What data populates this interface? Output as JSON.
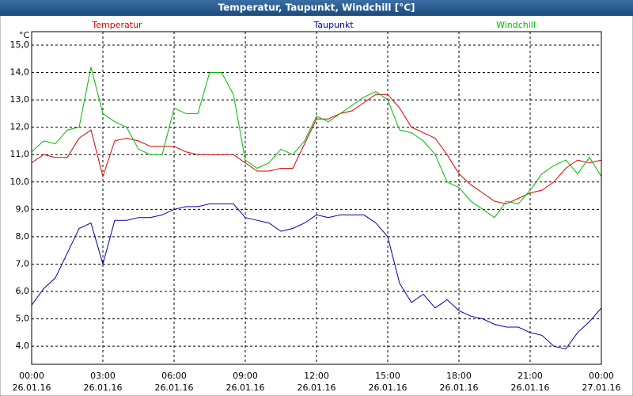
{
  "chart_data": {
    "type": "line",
    "title": "Temperatur, Taupunkt, Windchill [°C]",
    "y_unit": "°C",
    "x": [
      "2016-01-26T00:00",
      "2016-01-26T00:30",
      "2016-01-26T01:00",
      "2016-01-26T01:30",
      "2016-01-26T02:00",
      "2016-01-26T02:30",
      "2016-01-26T03:00",
      "2016-01-26T03:30",
      "2016-01-26T04:00",
      "2016-01-26T04:30",
      "2016-01-26T05:00",
      "2016-01-26T05:30",
      "2016-01-26T06:00",
      "2016-01-26T06:30",
      "2016-01-26T07:00",
      "2016-01-26T07:30",
      "2016-01-26T08:00",
      "2016-01-26T08:30",
      "2016-01-26T09:00",
      "2016-01-26T09:30",
      "2016-01-26T10:00",
      "2016-01-26T10:30",
      "2016-01-26T11:00",
      "2016-01-26T11:30",
      "2016-01-26T12:00",
      "2016-01-26T12:30",
      "2016-01-26T13:00",
      "2016-01-26T13:30",
      "2016-01-26T14:00",
      "2016-01-26T14:30",
      "2016-01-26T15:00",
      "2016-01-26T15:30",
      "2016-01-26T16:00",
      "2016-01-26T16:30",
      "2016-01-26T17:00",
      "2016-01-26T17:30",
      "2016-01-26T18:00",
      "2016-01-26T18:30",
      "2016-01-26T19:00",
      "2016-01-26T19:30",
      "2016-01-26T20:00",
      "2016-01-26T20:30",
      "2016-01-26T21:00",
      "2016-01-26T21:30",
      "2016-01-26T22:00",
      "2016-01-26T22:30",
      "2016-01-26T23:00",
      "2016-01-26T23:30",
      "2016-01-27T00:00"
    ],
    "series": [
      {
        "name": "Temperatur",
        "color": "#dd0000",
        "values": [
          10.7,
          11.0,
          10.9,
          10.9,
          11.6,
          11.9,
          10.2,
          11.5,
          11.6,
          11.5,
          11.3,
          11.3,
          11.3,
          11.1,
          11.0,
          11.0,
          11.0,
          11.0,
          10.7,
          10.4,
          10.4,
          10.5,
          10.5,
          11.4,
          12.3,
          12.3,
          12.5,
          12.6,
          12.9,
          13.2,
          13.2,
          12.7,
          12.0,
          11.8,
          11.6,
          11.0,
          10.3,
          9.9,
          9.6,
          9.3,
          9.2,
          9.4,
          9.6,
          9.7,
          10.0,
          10.5,
          10.8,
          10.7,
          10.8
        ]
      },
      {
        "name": "Taupunkt",
        "color": "#0000aa",
        "values": [
          5.5,
          6.1,
          6.5,
          7.4,
          8.3,
          8.5,
          7.0,
          8.6,
          8.6,
          8.7,
          8.7,
          8.8,
          9.0,
          9.1,
          9.1,
          9.2,
          9.2,
          9.2,
          8.7,
          8.6,
          8.5,
          8.2,
          8.3,
          8.5,
          8.8,
          8.7,
          8.8,
          8.8,
          8.8,
          8.5,
          8.0,
          6.3,
          5.6,
          5.9,
          5.4,
          5.7,
          5.3,
          5.1,
          5.0,
          4.8,
          4.7,
          4.7,
          4.5,
          4.4,
          4.0,
          3.9,
          4.5,
          4.9,
          5.4
        ]
      },
      {
        "name": "Windchill",
        "color": "#00bb00",
        "values": [
          11.1,
          11.5,
          11.4,
          11.9,
          12.0,
          14.2,
          12.5,
          12.2,
          12.0,
          11.2,
          11.0,
          11.0,
          12.7,
          12.5,
          12.5,
          14.0,
          14.0,
          13.2,
          10.8,
          10.5,
          10.7,
          11.2,
          11.0,
          11.5,
          12.4,
          12.2,
          12.5,
          12.8,
          13.1,
          13.3,
          13.0,
          11.9,
          11.8,
          11.5,
          11.0,
          10.0,
          9.8,
          9.3,
          9.0,
          8.7,
          9.3,
          9.2,
          9.7,
          10.3,
          10.6,
          10.8,
          10.3,
          10.9,
          10.2
        ]
      }
    ],
    "xlim": [
      "2016-01-26T00:00",
      "2016-01-27T00:00"
    ],
    "xticks": [
      {
        "value": "2016-01-26T00:00",
        "label": [
          "00:00",
          "26.01.16"
        ]
      },
      {
        "value": "2016-01-26T03:00",
        "label": [
          "03:00",
          "26.01.16"
        ]
      },
      {
        "value": "2016-01-26T06:00",
        "label": [
          "06:00",
          "26.01.16"
        ]
      },
      {
        "value": "2016-01-26T09:00",
        "label": [
          "09:00",
          "26.01.16"
        ]
      },
      {
        "value": "2016-01-26T12:00",
        "label": [
          "12:00",
          "26.01.16"
        ]
      },
      {
        "value": "2016-01-26T15:00",
        "label": [
          "15:00",
          "26.01.16"
        ]
      },
      {
        "value": "2016-01-26T18:00",
        "label": [
          "18:00",
          "26.01.16"
        ]
      },
      {
        "value": "2016-01-26T21:00",
        "label": [
          "21:00",
          "26.01.16"
        ]
      },
      {
        "value": "2016-01-27T00:00",
        "label": [
          "00:00",
          "27.01.16"
        ]
      }
    ],
    "ylim": [
      3.34,
      15.49
    ],
    "yticks": [
      {
        "value": 4,
        "label": "4,0"
      },
      {
        "value": 5,
        "label": "5,0"
      },
      {
        "value": 6,
        "label": "6,0"
      },
      {
        "value": 7,
        "label": "7,0"
      },
      {
        "value": 8,
        "label": "8,0"
      },
      {
        "value": 9,
        "label": "9,0"
      },
      {
        "value": 10,
        "label": "10,0"
      },
      {
        "value": 11,
        "label": "11,0"
      },
      {
        "value": 12,
        "label": "12,0"
      },
      {
        "value": 13,
        "label": "13,0"
      },
      {
        "value": 14,
        "label": "14,0"
      },
      {
        "value": 15,
        "label": "15,0"
      }
    ],
    "grid": true
  }
}
